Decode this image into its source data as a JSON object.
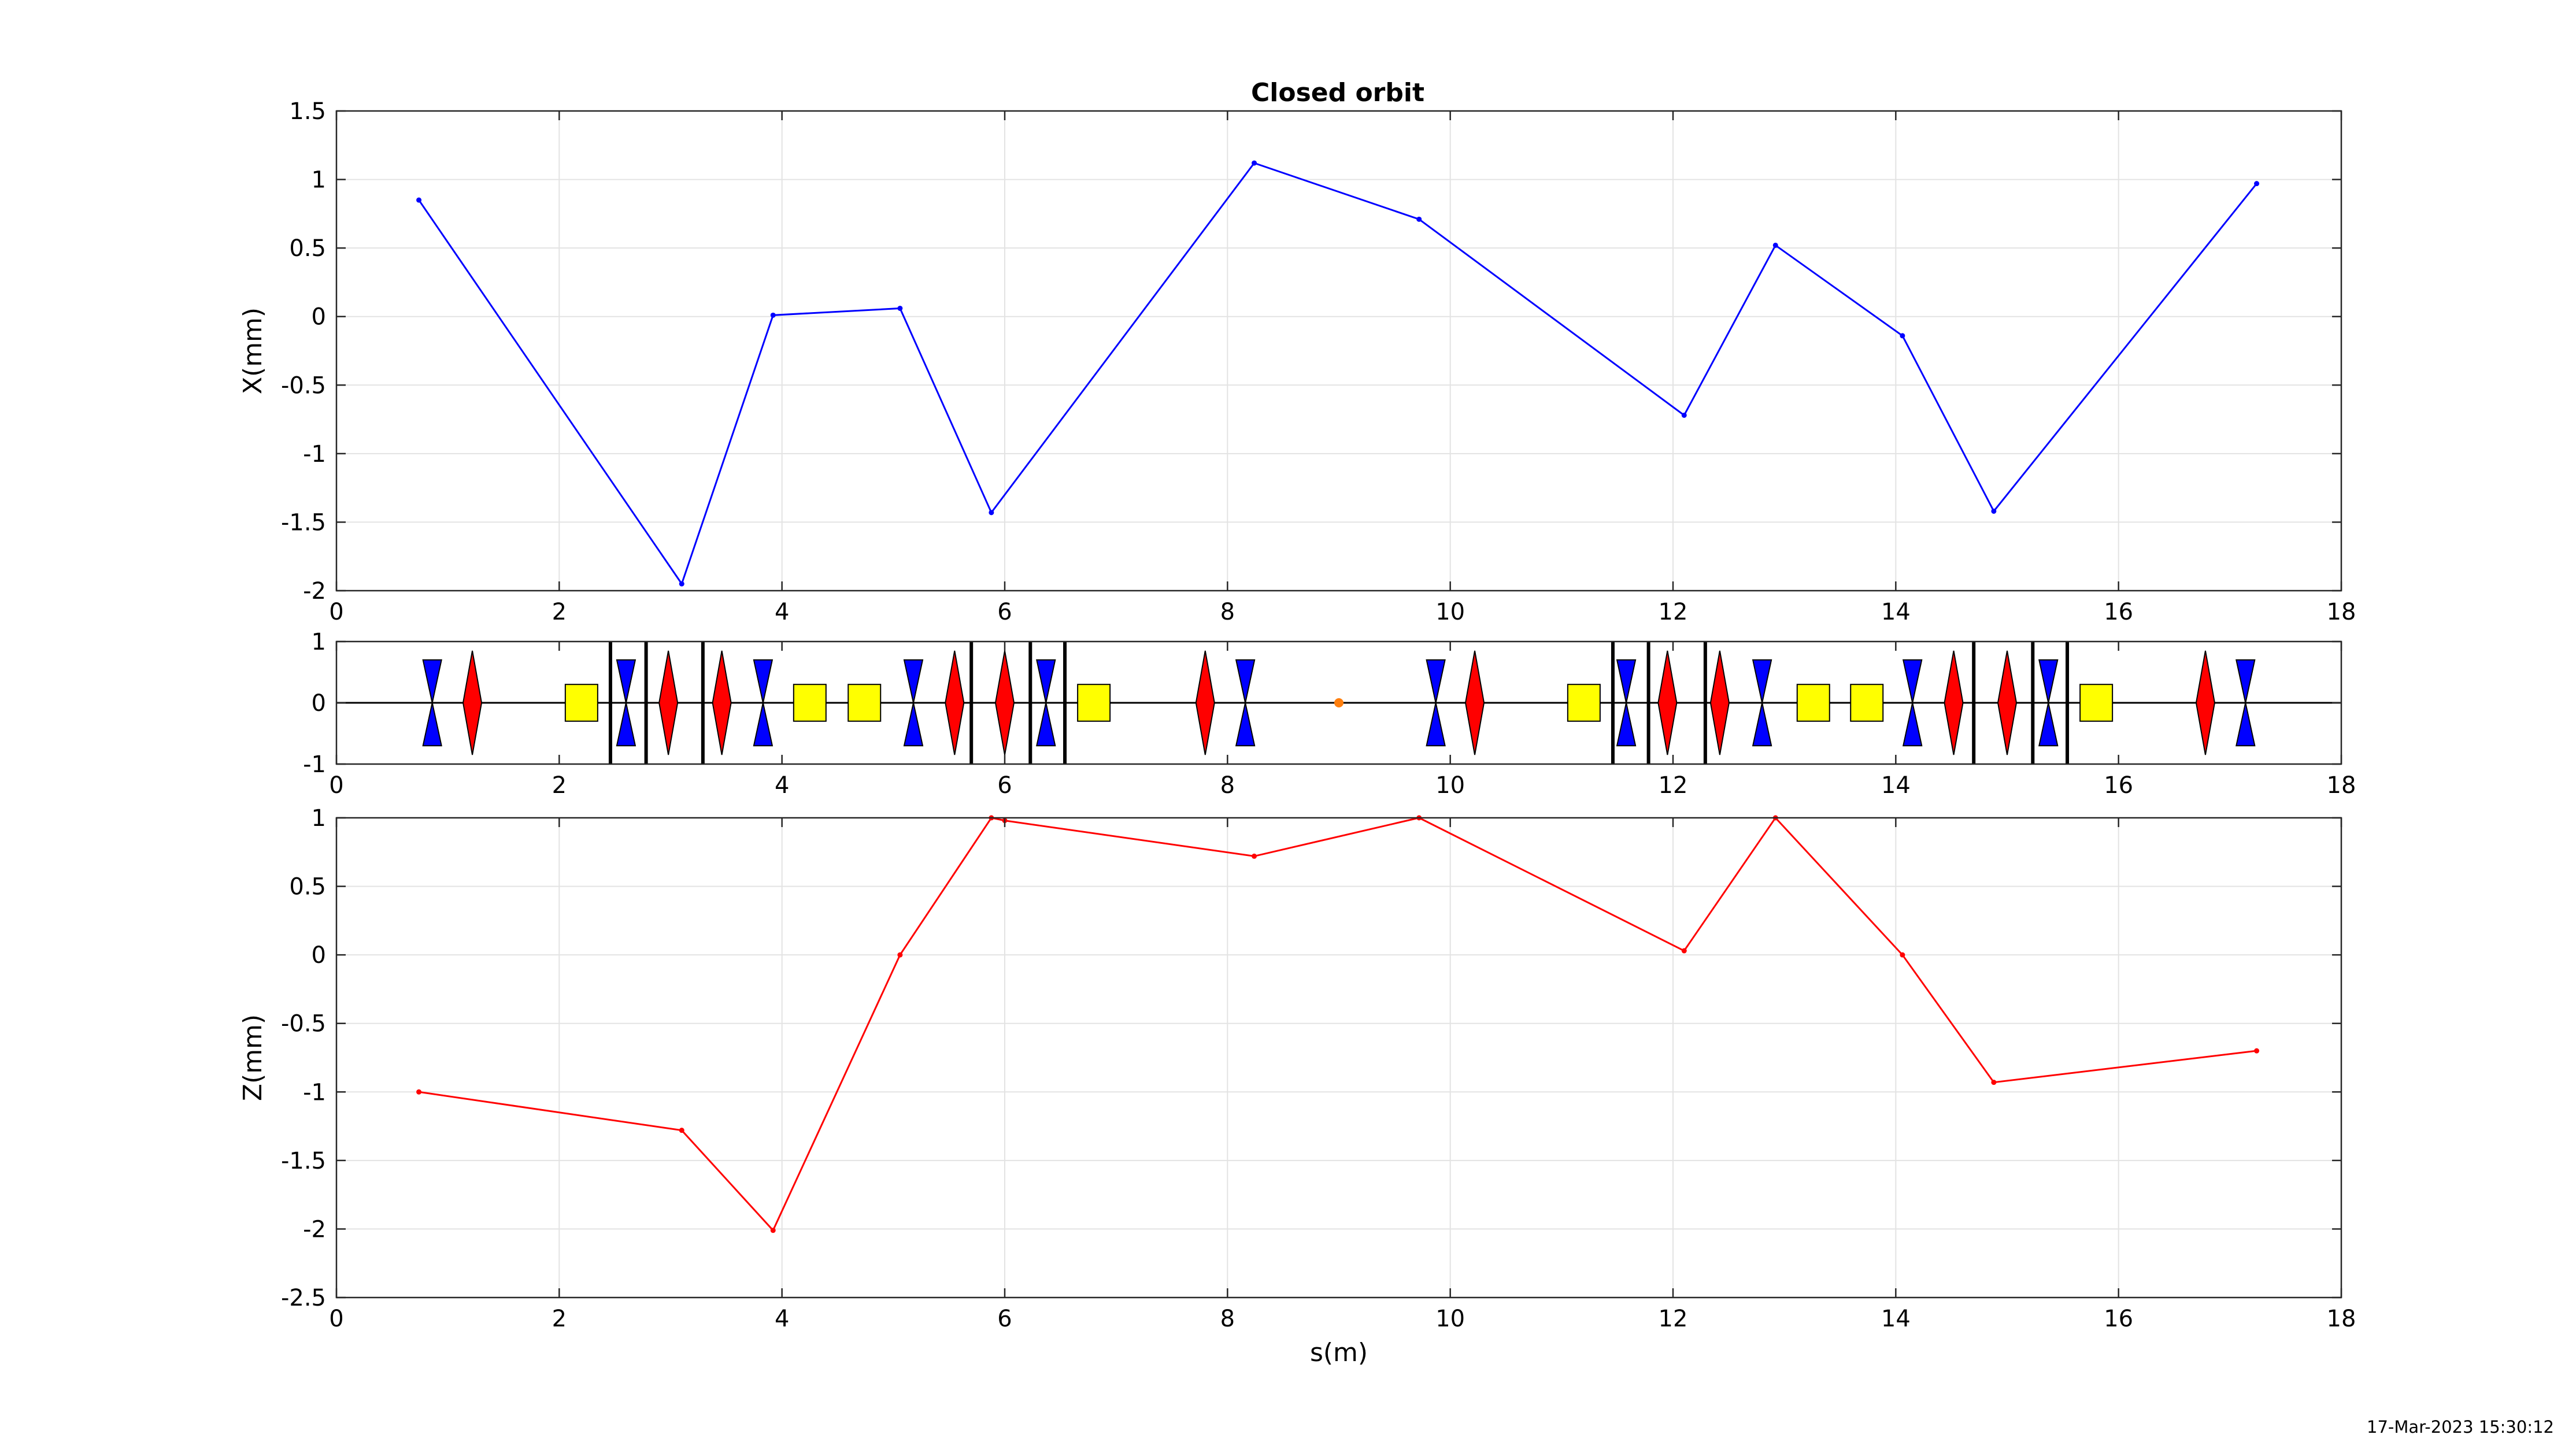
{
  "figure": {
    "title": "Closed orbit",
    "timestamp": "17-Mar-2023 15:30:12"
  },
  "chart_data": [
    {
      "type": "line",
      "title": "Closed orbit",
      "xlabel": "",
      "ylabel": "X(mm)",
      "xlim": [
        0,
        18
      ],
      "ylim": [
        -2,
        1.5
      ],
      "xticks": [
        "0",
        "2",
        "4",
        "6",
        "8",
        "10",
        "12",
        "14",
        "16",
        "18"
      ],
      "yticks": [
        "-2",
        "-1.5",
        "-1",
        "-0.5",
        "0",
        "0.5",
        "1",
        "1.5"
      ],
      "grid": true,
      "series": [
        {
          "color": "#0000ff",
          "x": [
            0.74,
            3.1,
            3.92,
            5.06,
            5.88,
            8.24,
            9.72,
            12.1,
            12.92,
            14.06,
            14.88,
            17.24
          ],
          "y": [
            0.85,
            -1.95,
            0.01,
            0.06,
            -1.43,
            1.12,
            0.71,
            -0.72,
            0.52,
            -0.14,
            -1.42,
            0.97
          ]
        }
      ]
    },
    {
      "type": "lattice",
      "xlim": [
        0,
        18
      ],
      "ylim": [
        -1,
        1
      ],
      "xticks": [
        "0",
        "2",
        "4",
        "6",
        "8",
        "10",
        "12",
        "14",
        "16",
        "18"
      ],
      "yticks": [
        "-1",
        "0",
        "1"
      ],
      "colors": {
        "focusing_quad": "#ff0000",
        "defocusing_quad": "#0000ff",
        "dipole": "#ffff00",
        "marker": "#ff7f0e"
      },
      "elements": {
        "focusing_quads": [
          1.22,
          2.98,
          3.46,
          5.55,
          6.0,
          7.8,
          10.22,
          11.95,
          12.42,
          14.52,
          15.0,
          16.78
        ],
        "defocusing_quads": [
          0.86,
          2.6,
          3.83,
          5.18,
          6.37,
          8.16,
          9.87,
          11.58,
          12.8,
          14.15,
          15.37,
          17.14
        ],
        "dipoles": [
          2.2,
          4.25,
          4.74,
          6.8,
          11.2,
          13.26,
          13.74,
          15.8
        ],
        "bpms": [
          2.46,
          2.78,
          3.29,
          5.7,
          6.23,
          6.54,
          11.46,
          11.78,
          12.29,
          14.7,
          15.23,
          15.54
        ],
        "markers": [
          9.0
        ]
      }
    },
    {
      "type": "line",
      "xlabel": "s(m)",
      "ylabel": "Z(mm)",
      "xlim": [
        0,
        18
      ],
      "ylim": [
        -2.5,
        1
      ],
      "xticks": [
        "0",
        "2",
        "4",
        "6",
        "8",
        "10",
        "12",
        "14",
        "16",
        "18"
      ],
      "yticks": [
        "-2.5",
        "-2",
        "-1.5",
        "-1",
        "-0.5",
        "0",
        "0.5",
        "1"
      ],
      "grid": true,
      "series": [
        {
          "color": "#ff0000",
          "x": [
            0.74,
            3.1,
            3.92,
            5.06,
            5.88,
            6.0,
            8.24,
            9.72,
            12.1,
            12.92,
            14.06,
            14.88,
            17.24
          ],
          "y": [
            -1.0,
            -1.28,
            -2.01,
            0.0,
            1.0,
            0.98,
            0.72,
            1.0,
            0.03,
            1.0,
            0.0,
            -0.93,
            -0.7
          ]
        }
      ]
    }
  ]
}
